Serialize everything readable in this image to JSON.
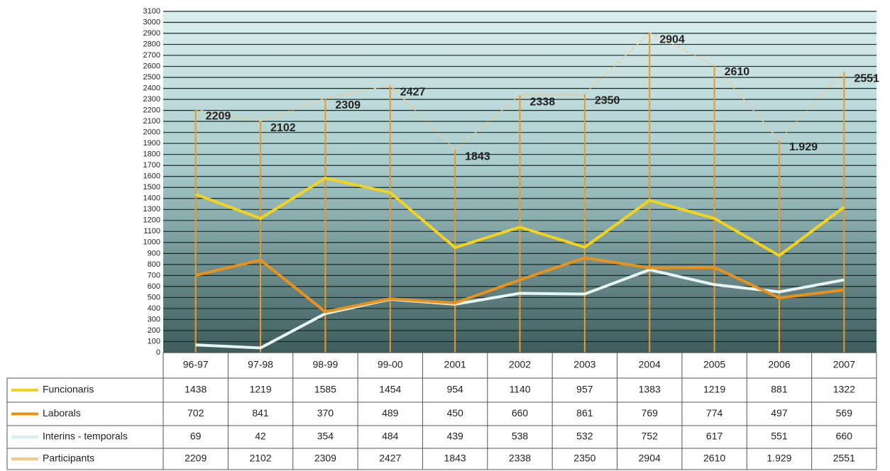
{
  "chart_data": {
    "type": "line",
    "categories": [
      "96-97",
      "97-98",
      "98-99",
      "99-00",
      "2001",
      "2002",
      "2003",
      "2004",
      "2005",
      "2006",
      "2007"
    ],
    "series": [
      {
        "name": "Funcionaris",
        "color": "#f2d41e",
        "values": [
          1438,
          1219,
          1585,
          1454,
          954,
          1140,
          957,
          1383,
          1219,
          881,
          1322
        ]
      },
      {
        "name": "Laborals",
        "color": "#e8921c",
        "values": [
          702,
          841,
          370,
          489,
          450,
          660,
          861,
          769,
          774,
          497,
          569
        ]
      },
      {
        "name": "Interins - temporals",
        "color": "#e6f4f4",
        "values": [
          69,
          42,
          354,
          484,
          439,
          538,
          532,
          752,
          617,
          551,
          660
        ]
      },
      {
        "name": "Participants",
        "color": "#f0c890",
        "values": [
          2209,
          2102,
          2309,
          2427,
          1843,
          2338,
          2350,
          2904,
          2610,
          1929,
          2551
        ],
        "value_labels": [
          "2209",
          "2102",
          "2309",
          "2427",
          "1843",
          "2338",
          "2350",
          "2904",
          "2610",
          "1.929",
          "2551"
        ]
      }
    ],
    "ylim": [
      0,
      3100
    ],
    "yticks": [
      0,
      100,
      200,
      300,
      400,
      500,
      600,
      700,
      800,
      900,
      1000,
      1100,
      1200,
      1300,
      1400,
      1500,
      1600,
      1700,
      1800,
      1900,
      2000,
      2100,
      2200,
      2300,
      2400,
      2500,
      2600,
      2700,
      2800,
      2900,
      3000,
      3100
    ],
    "grid": true
  }
}
